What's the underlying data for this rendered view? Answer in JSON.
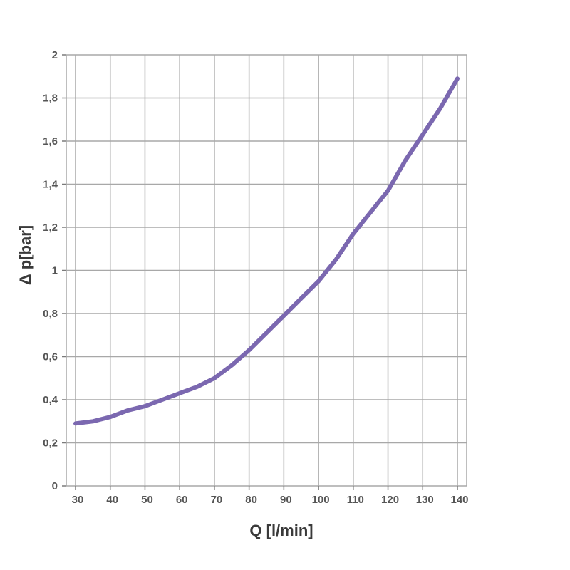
{
  "chart_data": {
    "type": "line",
    "xlabel": "Q [l/min]",
    "ylabel": "Δ p[bar]",
    "xlim": [
      30,
      140
    ],
    "ylim": [
      0,
      2
    ],
    "x_ticks": [
      30,
      40,
      50,
      60,
      70,
      80,
      90,
      100,
      110,
      120,
      130,
      140
    ],
    "y_ticks": [
      0,
      0.2,
      0.4,
      0.6,
      0.8,
      1,
      1.2,
      1.4,
      1.6,
      1.8,
      2
    ],
    "y_tick_labels": [
      "0",
      "0,2",
      "0,4",
      "0,6",
      "0,8",
      "1",
      "1,2",
      "1,4",
      "1,6",
      "1,8",
      "2"
    ],
    "grid": true,
    "series_color": "#7b68b0",
    "x": [
      30,
      35,
      40,
      45,
      50,
      55,
      60,
      65,
      70,
      75,
      80,
      85,
      90,
      95,
      100,
      105,
      110,
      115,
      120,
      125,
      130,
      135,
      140
    ],
    "y": [
      0.29,
      0.3,
      0.32,
      0.35,
      0.37,
      0.4,
      0.43,
      0.46,
      0.5,
      0.56,
      0.63,
      0.71,
      0.79,
      0.87,
      0.95,
      1.05,
      1.17,
      1.27,
      1.37,
      1.51,
      1.63,
      1.75,
      1.89
    ]
  }
}
